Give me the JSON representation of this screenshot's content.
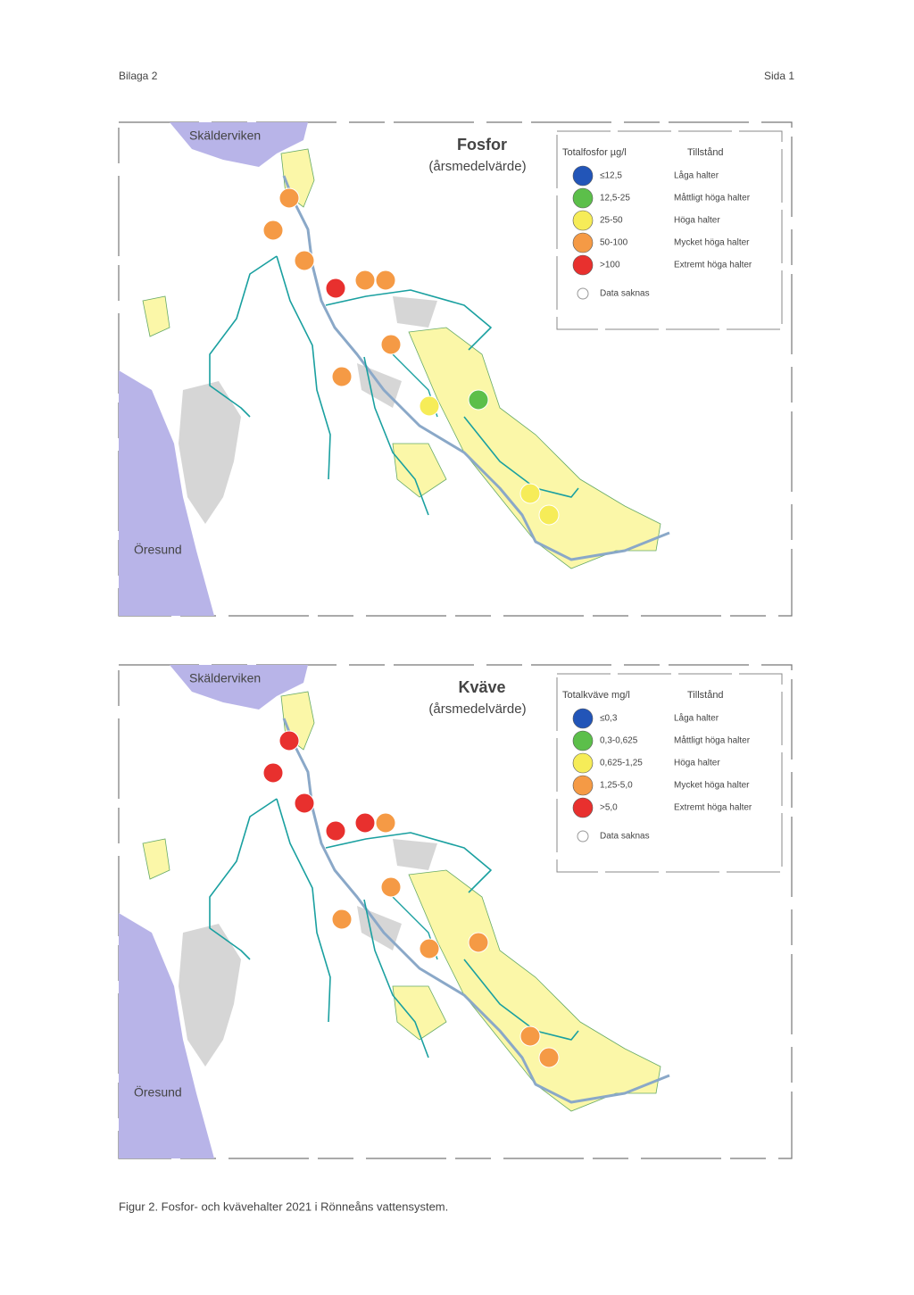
{
  "header": {
    "left": "Bilaga 2",
    "right": "Sida 1"
  },
  "maps": [
    {
      "sea_top": "Skälderviken",
      "sea_left": "Öresund",
      "title": "Fosfor",
      "subtitle": "(årsmedelvärde)",
      "legend": {
        "col1": "Totalfosfor µg/l",
        "col2": "Tillstånd",
        "rows": [
          {
            "range": "≤12,5",
            "label": "Låga halter"
          },
          {
            "range": "12,5-25",
            "label": "Måttligt höga halter"
          },
          {
            "range": "25-50",
            "label": "Höga halter"
          },
          {
            "range": "50-100",
            "label": "Mycket höga halter"
          },
          {
            "range": ">100",
            "label": "Extremt höga halter"
          }
        ],
        "note": "Data saknas"
      }
    },
    {
      "sea_top": "Skälderviken",
      "sea_left": "Öresund",
      "title": "Kväve",
      "subtitle": "(årsmedelvärde)",
      "legend": {
        "col1": "Totalkväve mg/l",
        "col2": "Tillstånd",
        "rows": [
          {
            "range": "≤0,3",
            "label": "Låga halter"
          },
          {
            "range": "0,3-0,625",
            "label": "Måttligt höga halter"
          },
          {
            "range": "0,625-1,25",
            "label": "Höga halter"
          },
          {
            "range": "1,25-5,0",
            "label": "Mycket höga halter"
          },
          {
            "range": ">5,0",
            "label": "Extremt höga halter"
          }
        ],
        "note": "Data saknas"
      }
    }
  ],
  "caption": "Figur 2. Fosfor- och kvävehalter 2021 i Rönneåns vattensystem."
}
